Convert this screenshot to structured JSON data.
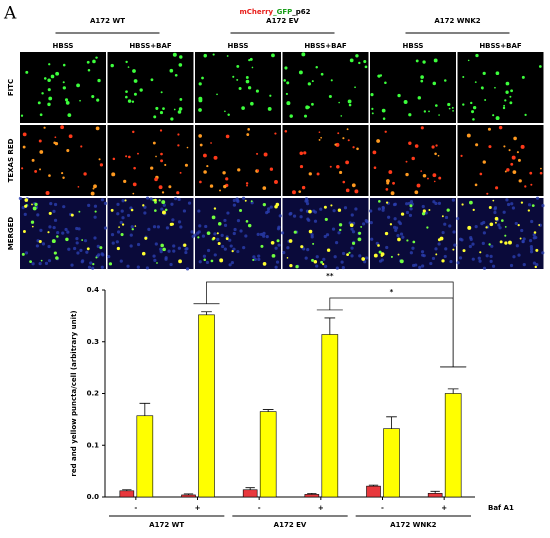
{
  "figure": {
    "panel_label": "A",
    "title": [
      {
        "text": "mCherry",
        "color": "#e8201c"
      },
      {
        "text": "_GFP",
        "color": "#1a9e1a"
      },
      {
        "text": "_p62",
        "color": "#000000"
      }
    ],
    "groups": [
      "A172 WT",
      "A172 EV",
      "A172 WNK2"
    ],
    "conditions": [
      "HBSS",
      "HBSS+BAF"
    ],
    "channels": [
      "FITC",
      "TEXAS RED",
      "MERGED"
    ]
  },
  "chart_data": {
    "type": "bar",
    "y_label": "red and yellow puncta/cell (arbitrary unit)",
    "categories": [
      "-",
      "+",
      "-",
      "+",
      "-",
      "+"
    ],
    "group_labels": [
      "A172 WT",
      "A172 EV",
      "A172 WNK2"
    ],
    "factor_label": "Baf A1",
    "series": [
      {
        "color": "#e8383d",
        "values": [
          0.012,
          0.004,
          0.014,
          0.005,
          0.021,
          0.007
        ],
        "errors": [
          0.002,
          0.002,
          0.004,
          0.002,
          0.002,
          0.004
        ]
      },
      {
        "color": "#ffff00",
        "values": [
          0.157,
          0.352,
          0.165,
          0.314,
          0.132,
          0.2
        ],
        "errors": [
          0.024,
          0.006,
          0.004,
          0.032,
          0.023,
          0.009
        ]
      }
    ],
    "ylim": [
      0,
      0.4
    ],
    "yticks": [
      {
        "value": 0,
        "label": "0.0"
      },
      0.1,
      0.2,
      0.3,
      0.4
    ],
    "annotations": [
      "**",
      "*"
    ]
  }
}
